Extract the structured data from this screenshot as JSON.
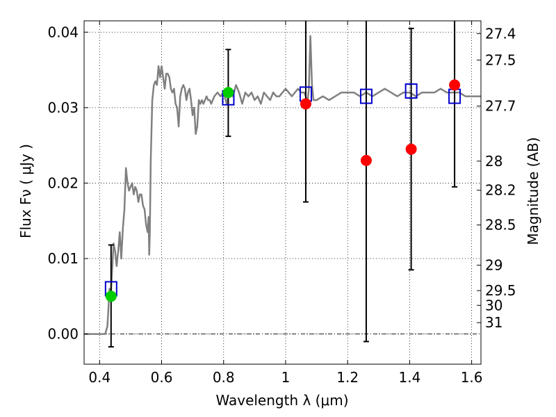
{
  "chart_data": {
    "type": "scatter",
    "xlabel": "Wavelength  λ (μm)",
    "ylabel_left": "Flux  Fν  ( μJy )",
    "ylabel_right": "Magnitude (AB)",
    "xlim": [
      0.35,
      1.63
    ],
    "ylim": [
      -0.004,
      0.0415
    ],
    "grid": true,
    "x_ticks": [
      {
        "value": 0.4,
        "label": "0.4"
      },
      {
        "value": 0.6,
        "label": "0.6"
      },
      {
        "value": 0.8,
        "label": "0.8"
      },
      {
        "value": 1.0,
        "label": "1"
      },
      {
        "value": 1.2,
        "label": "1.2"
      },
      {
        "value": 1.4,
        "label": "1.4"
      },
      {
        "value": 1.6,
        "label": "1.6"
      }
    ],
    "y_ticks": [
      {
        "value": 0.0,
        "label": "0.00"
      },
      {
        "value": 0.01,
        "label": "0.01"
      },
      {
        "value": 0.02,
        "label": "0.02"
      },
      {
        "value": 0.03,
        "label": "0.03"
      },
      {
        "value": 0.04,
        "label": "0.04"
      }
    ],
    "magnitude_ticks": [
      {
        "label": "27.4",
        "flux": 0.03981
      },
      {
        "label": "27.5",
        "flux": 0.03631
      },
      {
        "label": "27.7",
        "flux": 0.0302
      },
      {
        "label": "28",
        "flux": 0.02291
      },
      {
        "label": "28.2",
        "flux": 0.01905
      },
      {
        "label": "28.5",
        "flux": 0.01445
      },
      {
        "label": "29",
        "flux": 0.00912
      },
      {
        "label": "29.5",
        "flux": 0.00575
      },
      {
        "label": "30",
        "flux": 0.0038
      },
      {
        "label": "31",
        "flux": 0.00151
      }
    ],
    "series": [
      {
        "kind": "line",
        "color": "#808080",
        "x": [
          0.35,
          0.418,
          0.425,
          0.428,
          0.432,
          0.436,
          0.44,
          0.445,
          0.45,
          0.455,
          0.46,
          0.465,
          0.47,
          0.475,
          0.48,
          0.485,
          0.49,
          0.495,
          0.5,
          0.505,
          0.51,
          0.515,
          0.52,
          0.525,
          0.53,
          0.535,
          0.54,
          0.545,
          0.55,
          0.555,
          0.558,
          0.56,
          0.562,
          0.565,
          0.57,
          0.575,
          0.58,
          0.585,
          0.59,
          0.595,
          0.6,
          0.605,
          0.61,
          0.615,
          0.62,
          0.625,
          0.63,
          0.635,
          0.64,
          0.645,
          0.65,
          0.655,
          0.66,
          0.665,
          0.67,
          0.675,
          0.68,
          0.685,
          0.69,
          0.695,
          0.7,
          0.705,
          0.71,
          0.715,
          0.72,
          0.725,
          0.73,
          0.735,
          0.74,
          0.745,
          0.75,
          0.755,
          0.76,
          0.77,
          0.78,
          0.79,
          0.8,
          0.81,
          0.82,
          0.83,
          0.84,
          0.85,
          0.86,
          0.87,
          0.88,
          0.89,
          0.9,
          0.91,
          0.92,
          0.93,
          0.94,
          0.95,
          0.96,
          0.97,
          0.98,
          0.99,
          1.0,
          1.01,
          1.02,
          1.03,
          1.04,
          1.05,
          1.06,
          1.065,
          1.07,
          1.075,
          1.08,
          1.085,
          1.09,
          1.1,
          1.12,
          1.14,
          1.16,
          1.18,
          1.2,
          1.22,
          1.24,
          1.26,
          1.28,
          1.3,
          1.32,
          1.34,
          1.36,
          1.38,
          1.4,
          1.42,
          1.44,
          1.46,
          1.48,
          1.5,
          1.52,
          1.54,
          1.56,
          1.58,
          1.6,
          1.63
        ],
        "y": [
          0.0,
          0.0,
          0.001,
          0.003,
          0.006,
          0.005,
          0.008,
          0.012,
          0.011,
          0.009,
          0.011,
          0.0135,
          0.01,
          0.014,
          0.0165,
          0.022,
          0.02,
          0.019,
          0.0195,
          0.02,
          0.0185,
          0.0195,
          0.019,
          0.0175,
          0.0185,
          0.0185,
          0.017,
          0.0165,
          0.0145,
          0.0135,
          0.0155,
          0.0105,
          0.0135,
          0.023,
          0.031,
          0.033,
          0.0335,
          0.033,
          0.0355,
          0.034,
          0.0355,
          0.034,
          0.0325,
          0.0345,
          0.0345,
          0.034,
          0.0325,
          0.032,
          0.0325,
          0.0305,
          0.03,
          0.0275,
          0.0315,
          0.0325,
          0.033,
          0.0325,
          0.031,
          0.032,
          0.0325,
          0.031,
          0.029,
          0.03,
          0.0265,
          0.0275,
          0.031,
          0.0305,
          0.031,
          0.0305,
          0.031,
          0.0315,
          0.031,
          0.031,
          0.0305,
          0.0315,
          0.032,
          0.0315,
          0.032,
          0.0305,
          0.0325,
          0.0315,
          0.033,
          0.032,
          0.0305,
          0.032,
          0.0315,
          0.032,
          0.031,
          0.0315,
          0.0305,
          0.032,
          0.0315,
          0.031,
          0.032,
          0.0315,
          0.0315,
          0.032,
          0.0325,
          0.032,
          0.0315,
          0.032,
          0.0325,
          0.032,
          0.032,
          0.0315,
          0.0305,
          0.0325,
          0.0395,
          0.033,
          0.031,
          0.031,
          0.0315,
          0.031,
          0.0315,
          0.032,
          0.032,
          0.032,
          0.0315,
          0.032,
          0.0315,
          0.032,
          0.0325,
          0.032,
          0.0315,
          0.032,
          0.032,
          0.0315,
          0.032,
          0.032,
          0.032,
          0.0325,
          0.032,
          0.032,
          0.032,
          0.0315,
          0.0315,
          0.0315
        ]
      },
      {
        "kind": "errorbar",
        "color": "#000000",
        "points": [
          {
            "x": 0.437,
            "y": 0.005,
            "low": -0.0017,
            "high": 0.0118
          },
          {
            "x": 0.815,
            "y": 0.032,
            "low": 0.0262,
            "high": 0.0377
          },
          {
            "x": 1.065,
            "y": 0.0305,
            "low": 0.0175,
            "high": 0.0415
          },
          {
            "x": 1.26,
            "y": 0.023,
            "low": -0.001,
            "high": 0.0415
          },
          {
            "x": 1.405,
            "y": 0.0245,
            "low": 0.0085,
            "high": 0.0405
          },
          {
            "x": 1.545,
            "y": 0.033,
            "low": 0.0195,
            "high": 0.0415
          }
        ]
      },
      {
        "kind": "open-square",
        "color": "#0000cc",
        "x": [
          0.437,
          0.815,
          1.065,
          1.26,
          1.405,
          1.545
        ],
        "y": [
          0.006,
          0.0313,
          0.0318,
          0.0315,
          0.0322,
          0.0315
        ]
      },
      {
        "kind": "filled-circle",
        "color": "#ff0000",
        "x": [
          1.065,
          1.26,
          1.405,
          1.545
        ],
        "y": [
          0.0305,
          0.023,
          0.0245,
          0.033
        ]
      },
      {
        "kind": "filled-circle",
        "color": "#00cc00",
        "x": [
          0.437,
          0.815
        ],
        "y": [
          0.005,
          0.032
        ]
      }
    ]
  }
}
